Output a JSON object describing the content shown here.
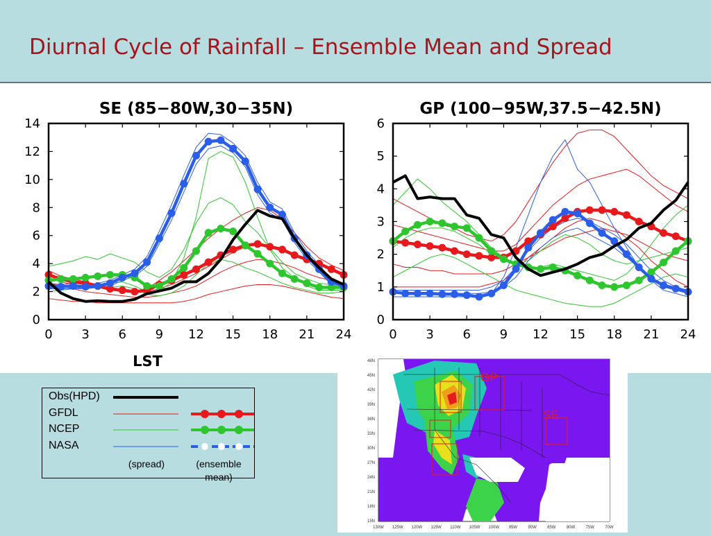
{
  "slide_title": "Diurnal Cycle of Rainfall – Ensemble Mean and Spread",
  "colors": {
    "obs": "#000000",
    "gfdl": "#e8191c",
    "ncep": "#2ec62e",
    "nasa": "#2a5ee8",
    "title": "#a8141c",
    "background": "#b7dde1"
  },
  "chart_data": [
    {
      "type": "line",
      "title": "SE (85−80W,30−35N)",
      "xlabel": "LST",
      "xlim": [
        0,
        24
      ],
      "ylim": [
        0,
        14
      ],
      "xticks": [
        0,
        3,
        6,
        9,
        12,
        15,
        18,
        21,
        24
      ],
      "yticks": [
        0,
        2,
        4,
        6,
        8,
        10,
        12,
        14
      ],
      "x": [
        0,
        1,
        2,
        3,
        4,
        5,
        6,
        7,
        8,
        9,
        10,
        11,
        12,
        13,
        14,
        15,
        16,
        17,
        18,
        19,
        20,
        21,
        22,
        23,
        24
      ],
      "series": [
        {
          "name": "Obs(HPD)",
          "kind": "obs",
          "values": [
            2.7,
            1.9,
            1.5,
            1.3,
            1.35,
            1.3,
            1.3,
            1.45,
            1.85,
            2.05,
            2.25,
            2.7,
            2.7,
            3.3,
            4.3,
            5.7,
            6.8,
            7.8,
            7.4,
            7.2,
            5.8,
            4.6,
            3.7,
            2.9,
            2.5
          ]
        },
        {
          "name": "GFDL",
          "kind": "mean",
          "values": [
            3.2,
            2.9,
            2.7,
            2.6,
            2.4,
            2.2,
            2.1,
            2.0,
            2.1,
            2.5,
            2.8,
            3.2,
            3.6,
            4.1,
            4.6,
            5.0,
            5.3,
            5.4,
            5.2,
            5.0,
            4.6,
            4.3,
            4.0,
            3.6,
            3.2
          ]
        },
        {
          "name": "NCEP",
          "kind": "mean",
          "values": [
            2.8,
            2.9,
            2.9,
            3.0,
            3.1,
            3.2,
            3.2,
            3.0,
            2.4,
            2.4,
            2.9,
            3.7,
            4.9,
            6.2,
            6.5,
            6.3,
            5.3,
            4.7,
            4.0,
            3.3,
            2.9,
            2.6,
            2.3,
            2.3,
            2.3
          ]
        },
        {
          "name": "NASA",
          "kind": "mean",
          "values": [
            2.4,
            2.35,
            2.4,
            2.35,
            2.4,
            2.6,
            3.0,
            3.3,
            4.1,
            5.8,
            7.6,
            9.7,
            11.7,
            12.7,
            12.8,
            12.2,
            11.3,
            9.3,
            8.0,
            7.5,
            5.8,
            4.6,
            3.6,
            2.7,
            2.4
          ]
        },
        {
          "name": "GFDL",
          "kind": "spread",
          "values": [
            3.5,
            3.1,
            2.9,
            2.7,
            2.5,
            2.3,
            2.1,
            2.0,
            2.2,
            2.8,
            3.4,
            4.2,
            5.0,
            5.8,
            6.5,
            7.1,
            7.6,
            8.0,
            7.8,
            7.2,
            6.2,
            5.2,
            4.4,
            3.9,
            3.5
          ]
        },
        {
          "name": "GFDL",
          "kind": "spread",
          "values": [
            3.0,
            2.7,
            2.5,
            2.4,
            2.3,
            2.1,
            2.0,
            1.9,
            2.0,
            2.2,
            2.5,
            2.9,
            3.3,
            3.8,
            4.3,
            4.8,
            5.2,
            5.4,
            5.3,
            5.1,
            4.7,
            4.3,
            3.9,
            3.5,
            3.1
          ]
        },
        {
          "name": "GFDL",
          "kind": "spread",
          "values": [
            2.6,
            2.4,
            2.2,
            2.0,
            1.9,
            1.8,
            1.7,
            1.6,
            1.6,
            1.7,
            1.9,
            2.1,
            2.4,
            2.9,
            3.4,
            3.8,
            4.1,
            4.3,
            4.2,
            4.0,
            3.7,
            3.3,
            3.0,
            2.8,
            2.6
          ]
        },
        {
          "name": "GFDL",
          "kind": "spread",
          "values": [
            1.5,
            1.4,
            1.3,
            1.3,
            1.2,
            1.2,
            1.2,
            1.2,
            1.2,
            1.2,
            1.2,
            1.3,
            1.5,
            1.8,
            2.0,
            2.2,
            2.4,
            2.5,
            2.5,
            2.4,
            2.2,
            2.0,
            1.8,
            1.6,
            1.5
          ]
        },
        {
          "name": "NCEP",
          "kind": "spread",
          "values": [
            3.8,
            4.0,
            4.2,
            4.5,
            4.3,
            4.7,
            4.4,
            4.1,
            3.4,
            3.0,
            3.6,
            5.0,
            6.9,
            8.3,
            8.7,
            8.2,
            7.0,
            6.2,
            5.1,
            4.1,
            3.3,
            2.9,
            2.6,
            2.5,
            2.4
          ]
        },
        {
          "name": "NCEP",
          "kind": "spread",
          "values": [
            2.2,
            2.4,
            2.3,
            2.4,
            2.5,
            2.6,
            2.7,
            2.4,
            2.0,
            2.0,
            2.7,
            4.4,
            7.3,
            11.5,
            12.0,
            11.6,
            9.8,
            7.3,
            5.0,
            3.7,
            3.0,
            2.4,
            2.1,
            2.1,
            2.1
          ]
        },
        {
          "name": "NCEP",
          "kind": "spread",
          "values": [
            2.0,
            2.1,
            2.2,
            2.3,
            2.4,
            2.3,
            2.4,
            2.2,
            1.8,
            1.7,
            1.9,
            2.4,
            3.2,
            4.0,
            4.3,
            4.1,
            3.7,
            3.4,
            3.0,
            2.6,
            2.3,
            2.1,
            1.9,
            1.9,
            2.0
          ]
        },
        {
          "name": "NASA",
          "kind": "spread",
          "values": [
            2.6,
            2.5,
            2.6,
            2.5,
            2.6,
            2.8,
            3.2,
            3.6,
            4.5,
            6.3,
            8.2,
            10.3,
            12.3,
            13.3,
            13.2,
            12.6,
            11.7,
            9.8,
            8.4,
            7.9,
            6.2,
            4.9,
            3.9,
            2.9,
            2.6
          ]
        },
        {
          "name": "NASA",
          "kind": "spread",
          "values": [
            2.2,
            2.2,
            2.2,
            2.2,
            2.3,
            2.4,
            2.8,
            3.1,
            3.8,
            5.4,
            7.1,
            9.1,
            11.1,
            12.2,
            12.4,
            11.9,
            10.9,
            8.9,
            7.6,
            7.1,
            5.5,
            4.3,
            3.4,
            2.5,
            2.2
          ]
        }
      ]
    },
    {
      "type": "line",
      "title": "GP (100−95W,37.5−42.5N)",
      "xlabel": "",
      "xlim": [
        0,
        24
      ],
      "ylim": [
        0,
        6
      ],
      "xticks": [
        0,
        3,
        6,
        9,
        12,
        15,
        18,
        21,
        24
      ],
      "yticks": [
        0,
        1,
        2,
        3,
        4,
        5,
        6
      ],
      "x": [
        0,
        1,
        2,
        3,
        4,
        5,
        6,
        7,
        8,
        9,
        10,
        11,
        12,
        13,
        14,
        15,
        16,
        17,
        18,
        19,
        20,
        21,
        22,
        23,
        24
      ],
      "series": [
        {
          "name": "Obs(HPD)",
          "kind": "obs",
          "values": [
            4.2,
            4.4,
            3.7,
            3.75,
            3.7,
            3.7,
            3.2,
            3.1,
            2.6,
            2.5,
            1.9,
            1.55,
            1.35,
            1.45,
            1.55,
            1.7,
            1.9,
            2.0,
            2.25,
            2.45,
            2.8,
            2.95,
            3.35,
            3.65,
            4.2
          ]
        },
        {
          "name": "GFDL",
          "kind": "mean",
          "values": [
            2.4,
            2.35,
            2.3,
            2.25,
            2.2,
            2.1,
            2.0,
            1.95,
            1.9,
            1.9,
            2.1,
            2.4,
            2.6,
            2.85,
            3.1,
            3.3,
            3.35,
            3.35,
            3.3,
            3.2,
            3.0,
            2.85,
            2.65,
            2.55,
            2.4
          ]
        },
        {
          "name": "NCEP",
          "kind": "mean",
          "values": [
            2.4,
            2.7,
            2.9,
            3.0,
            2.95,
            2.85,
            2.8,
            2.5,
            2.1,
            1.85,
            1.7,
            1.6,
            1.55,
            1.6,
            1.5,
            1.35,
            1.2,
            1.05,
            1.0,
            1.05,
            1.2,
            1.45,
            1.75,
            2.1,
            2.4
          ]
        },
        {
          "name": "NASA",
          "kind": "mean",
          "values": [
            0.85,
            0.8,
            0.8,
            0.8,
            0.78,
            0.78,
            0.75,
            0.7,
            0.8,
            1.05,
            1.55,
            2.2,
            2.65,
            3.05,
            3.3,
            3.25,
            2.95,
            2.65,
            2.4,
            2.0,
            1.6,
            1.25,
            1.05,
            0.95,
            0.85
          ]
        },
        {
          "name": "GFDL",
          "kind": "spread",
          "values": [
            3.7,
            3.5,
            3.3,
            3.1,
            2.9,
            2.8,
            2.6,
            2.5,
            2.4,
            2.6,
            3.0,
            3.6,
            4.2,
            4.8,
            5.3,
            5.7,
            5.8,
            5.8,
            5.6,
            5.2,
            4.8,
            4.4,
            4.1,
            3.9,
            3.7
          ]
        },
        {
          "name": "GFDL",
          "kind": "spread",
          "values": [
            2.9,
            2.8,
            2.7,
            2.6,
            2.5,
            2.4,
            2.3,
            2.2,
            2.1,
            2.1,
            2.3,
            2.7,
            3.1,
            3.5,
            3.8,
            4.1,
            4.3,
            4.4,
            4.5,
            4.6,
            4.4,
            4.1,
            3.8,
            3.5,
            3.3
          ]
        },
        {
          "name": "GFDL",
          "kind": "spread",
          "values": [
            1.7,
            1.6,
            1.6,
            1.5,
            1.5,
            1.4,
            1.4,
            1.4,
            1.4,
            1.5,
            1.7,
            1.9,
            2.1,
            2.3,
            2.5,
            2.6,
            2.7,
            2.8,
            2.7,
            2.6,
            2.4,
            2.2,
            2.0,
            1.9,
            1.8
          ]
        },
        {
          "name": "GFDL",
          "kind": "spread",
          "values": [
            1.0,
            1.0,
            1.0,
            1.0,
            1.0,
            1.0,
            1.0,
            1.0,
            1.1,
            1.2,
            1.5,
            1.9,
            2.2,
            2.5,
            2.8,
            3.0,
            3.1,
            3.0,
            2.8,
            2.5,
            2.2,
            1.8,
            1.5,
            1.2,
            1.0
          ]
        },
        {
          "name": "NCEP",
          "kind": "spread",
          "values": [
            3.5,
            3.9,
            4.3,
            4.0,
            3.6,
            3.3,
            3.0,
            2.6,
            2.2,
            1.9,
            1.7,
            1.6,
            1.6,
            1.7,
            1.6,
            1.5,
            1.4,
            1.3,
            1.2,
            1.4,
            1.8,
            2.3,
            2.8,
            3.2,
            3.5
          ]
        },
        {
          "name": "NCEP",
          "kind": "spread",
          "values": [
            2.2,
            2.5,
            2.7,
            2.8,
            2.8,
            2.7,
            2.5,
            2.3,
            2.0,
            1.8,
            1.7,
            1.8,
            2.1,
            2.4,
            2.6,
            2.5,
            2.3,
            2.0,
            1.8,
            1.7,
            1.8,
            1.9,
            2.0,
            2.1,
            2.2
          ]
        },
        {
          "name": "NCEP",
          "kind": "spread",
          "values": [
            1.3,
            1.5,
            1.7,
            1.9,
            2.0,
            1.9,
            1.7,
            1.5,
            1.3,
            1.1,
            0.9,
            0.8,
            0.7,
            0.6,
            0.5,
            0.45,
            0.4,
            0.4,
            0.5,
            0.7,
            0.9,
            1.1,
            1.3,
            1.4,
            1.3
          ]
        },
        {
          "name": "NASA",
          "kind": "spread",
          "values": [
            0.7,
            0.7,
            0.7,
            0.7,
            0.7,
            0.7,
            0.7,
            0.7,
            0.8,
            1.3,
            2.2,
            3.2,
            4.2,
            5.0,
            5.5,
            4.6,
            4.2,
            3.5,
            2.8,
            2.2,
            1.6,
            1.2,
            0.9,
            0.8,
            0.7
          ]
        },
        {
          "name": "NASA",
          "kind": "spread",
          "values": [
            0.9,
            0.9,
            0.9,
            0.9,
            0.9,
            0.9,
            0.9,
            0.9,
            1.0,
            1.2,
            1.6,
            2.1,
            2.5,
            2.8,
            3.0,
            3.1,
            3.0,
            2.8,
            2.6,
            2.3,
            1.9,
            1.5,
            1.2,
            1.0,
            0.9
          ]
        },
        {
          "name": "NASA",
          "kind": "spread",
          "values": [
            0.8,
            0.8,
            0.8,
            0.8,
            0.8,
            0.8,
            0.8,
            0.8,
            0.85,
            1.0,
            1.3,
            1.8,
            2.2,
            2.5,
            2.7,
            2.8,
            2.6,
            2.4,
            2.2,
            1.9,
            1.6,
            1.3,
            1.0,
            0.9,
            0.8
          ]
        }
      ]
    }
  ],
  "legend": {
    "items": [
      "Obs(HPD)",
      "GFDL",
      "NCEP",
      "NASA"
    ],
    "spread_label": "(spread)",
    "mean_label_line1": "(ensemble",
    "mean_label_line2": "mean)"
  },
  "map": {
    "region_labels": [
      "GP",
      "SE"
    ],
    "lat_labels": [
      "48N",
      "45N",
      "42N",
      "39N",
      "36N",
      "33N",
      "30N",
      "27N",
      "24N",
      "21N",
      "18N",
      "15N"
    ],
    "lon_labels": [
      "130W",
      "125W",
      "120W",
      "115W",
      "110W",
      "105W",
      "100W",
      "95W",
      "90W",
      "85W",
      "80W",
      "75W",
      "70W"
    ]
  }
}
